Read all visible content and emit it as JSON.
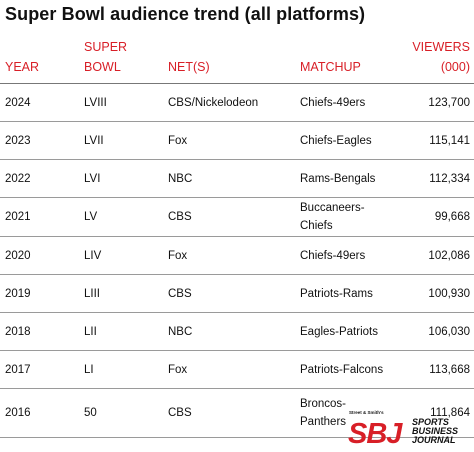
{
  "title": "Super Bowl audience trend (all platforms)",
  "columns": {
    "year": "YEAR",
    "super_bowl_line1": "SUPER",
    "super_bowl_line2": "BOWL",
    "nets": "NET(S)",
    "matchup": "MATCHUP",
    "viewers_line1": "VIEWERS",
    "viewers_line2": "(000)"
  },
  "rows": [
    {
      "year": "2024",
      "bowl": "LVIII",
      "nets": "CBS/Nickelodeon",
      "matchup": [
        "Chiefs-49ers"
      ],
      "viewers": "123,700"
    },
    {
      "year": "2023",
      "bowl": "LVII",
      "nets": "Fox",
      "matchup": [
        "Chiefs-Eagles"
      ],
      "viewers": "115,141"
    },
    {
      "year": "2022",
      "bowl": "LVI",
      "nets": "NBC",
      "matchup": [
        "Rams-Bengals"
      ],
      "viewers": "112,334"
    },
    {
      "year": "2021",
      "bowl": "LV",
      "nets": "CBS",
      "matchup": [
        "Buccaneers-",
        "Chiefs"
      ],
      "viewers": "99,668"
    },
    {
      "year": "2020",
      "bowl": "LIV",
      "nets": "Fox",
      "matchup": [
        "Chiefs-49ers"
      ],
      "viewers": "102,086"
    },
    {
      "year": "2019",
      "bowl": "LIII",
      "nets": "CBS",
      "matchup": [
        "Patriots-Rams"
      ],
      "viewers": "100,930"
    },
    {
      "year": "2018",
      "bowl": "LII",
      "nets": "NBC",
      "matchup": [
        "Eagles-Patriots"
      ],
      "viewers": "106,030"
    },
    {
      "year": "2017",
      "bowl": "LI",
      "nets": "Fox",
      "matchup": [
        "Patriots-Falcons"
      ],
      "viewers": "113,668"
    },
    {
      "year": "2016",
      "bowl": "50",
      "nets": "CBS",
      "matchup": [
        "Broncos-",
        "Panthers"
      ],
      "viewers": "111,864"
    }
  ],
  "logo": {
    "kicker": "Street & Smith's",
    "mark": "SBJ",
    "line1": "SPORTS",
    "line2": "BUSINESS",
    "line3": "JOURNAL"
  },
  "colors": {
    "header_red": "#d81f27",
    "text": "#111111",
    "rule": "#9a9a9a"
  }
}
